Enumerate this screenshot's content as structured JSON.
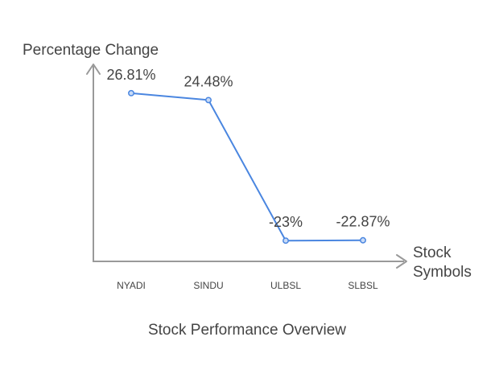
{
  "chart_data": {
    "type": "line",
    "title": "Stock Performance Overview",
    "ylabel": "Percentage Change",
    "xlabel": [
      "Stock",
      "Symbols"
    ],
    "categories": [
      "NYADI",
      "SINDU",
      "ULBSL",
      "SLBSL"
    ],
    "series": [
      {
        "values": [
          26.81,
          24.48,
          -23,
          -22.87
        ],
        "labels": [
          "26.81%",
          "24.48%",
          "-23%",
          "-22.87%"
        ]
      }
    ],
    "ylim": [
      -30,
      36
    ],
    "grid": false,
    "legend": "none",
    "colors": {
      "line": "#4a86e0",
      "axis": "#999999",
      "text": "#444444"
    }
  }
}
